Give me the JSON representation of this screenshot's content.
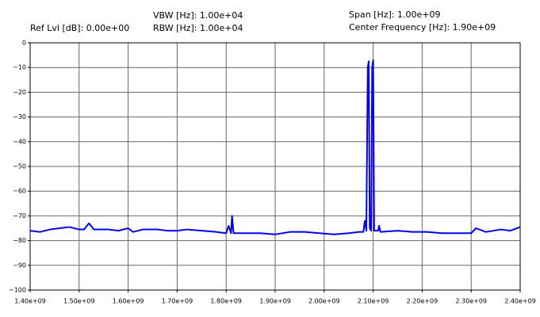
{
  "chart_data": {
    "type": "line",
    "annotations": [
      "Ref Lvl [dB]: 0.00e+00",
      "VBW [Hz]: 1.00e+04",
      "RBW [Hz]: 1.00e+04",
      "Span [Hz]: 1.00e+09",
      "Center Frequency [Hz]: 1.90e+09"
    ],
    "x": [
      1400000000,
      1420000000,
      1440000000,
      1460000000,
      1480000000,
      1500000000,
      1510000000,
      1520000000,
      1530000000,
      1560000000,
      1580000000,
      1600000000,
      1610000000,
      1630000000,
      1660000000,
      1680000000,
      1700000000,
      1720000000,
      1750000000,
      1780000000,
      1800000000,
      1805000000,
      1810000000,
      1812000000,
      1815000000,
      1840000000,
      1870000000,
      1900000000,
      1930000000,
      1960000000,
      1990000000,
      2020000000,
      2050000000,
      2070000000,
      2080000000,
      2083000000,
      2086000000,
      2089000000,
      2091000000,
      2093000000,
      2096000000,
      2098000000,
      2100000000,
      2102000000,
      2110000000,
      2112000000,
      2115000000,
      2150000000,
      2180000000,
      2210000000,
      2240000000,
      2270000000,
      2300000000,
      2310000000,
      2330000000,
      2360000000,
      2380000000,
      2400000000
    ],
    "series": [
      {
        "color": "#0000ee",
        "values": [
          -76,
          -76.5,
          -75.5,
          -75,
          -74.5,
          -75.5,
          -75.5,
          -73,
          -75.5,
          -75.5,
          -76,
          -75,
          -76.5,
          -75.5,
          -75.5,
          -76,
          -76,
          -75.5,
          -76,
          -76.5,
          -77,
          -74,
          -77,
          -70,
          -77,
          -77,
          -77,
          -77.5,
          -76.5,
          -76.5,
          -77,
          -77.5,
          -77,
          -76.5,
          -76.5,
          -72,
          -76,
          -10,
          -7.5,
          -75,
          -76,
          -10,
          -7,
          -76,
          -76,
          -74,
          -76.5,
          -76,
          -76.5,
          -76.5,
          -77,
          -77,
          -77,
          -75,
          -76.5,
          -75.5,
          -76,
          -74.5
        ]
      }
    ],
    "xlim": [
      1400000000,
      2400000000
    ],
    "xticks": [
      {
        "value": 1400000000,
        "label": "1.40e+09"
      },
      {
        "value": 1500000000,
        "label": "1.50e+09"
      },
      {
        "value": 1600000000,
        "label": "1.60e+09"
      },
      {
        "value": 1700000000,
        "label": "1.70e+09"
      },
      {
        "value": 1800000000,
        "label": "1.80e+09"
      },
      {
        "value": 1900000000,
        "label": "1.90e+09"
      },
      {
        "value": 2000000000,
        "label": "2.00e+09"
      },
      {
        "value": 2100000000,
        "label": "2.10e+09"
      },
      {
        "value": 2200000000,
        "label": "2.20e+09"
      },
      {
        "value": 2300000000,
        "label": "2.30e+09"
      },
      {
        "value": 2400000000,
        "label": "2.40e+09"
      }
    ],
    "ylim": [
      -100,
      0
    ],
    "yticks": [
      0,
      {
        "value": -10,
        "label": "−10"
      },
      {
        "value": -20,
        "label": "−20"
      },
      {
        "value": -30,
        "label": "−30"
      },
      {
        "value": -40,
        "label": "−40"
      },
      {
        "value": -50,
        "label": "−50"
      },
      {
        "value": -60,
        "label": "−60"
      },
      {
        "value": -70,
        "label": "−70"
      },
      {
        "value": -80,
        "label": "−80"
      },
      {
        "value": -90,
        "label": "−90"
      },
      {
        "value": -100,
        "label": "−100"
      }
    ],
    "grid": true
  }
}
